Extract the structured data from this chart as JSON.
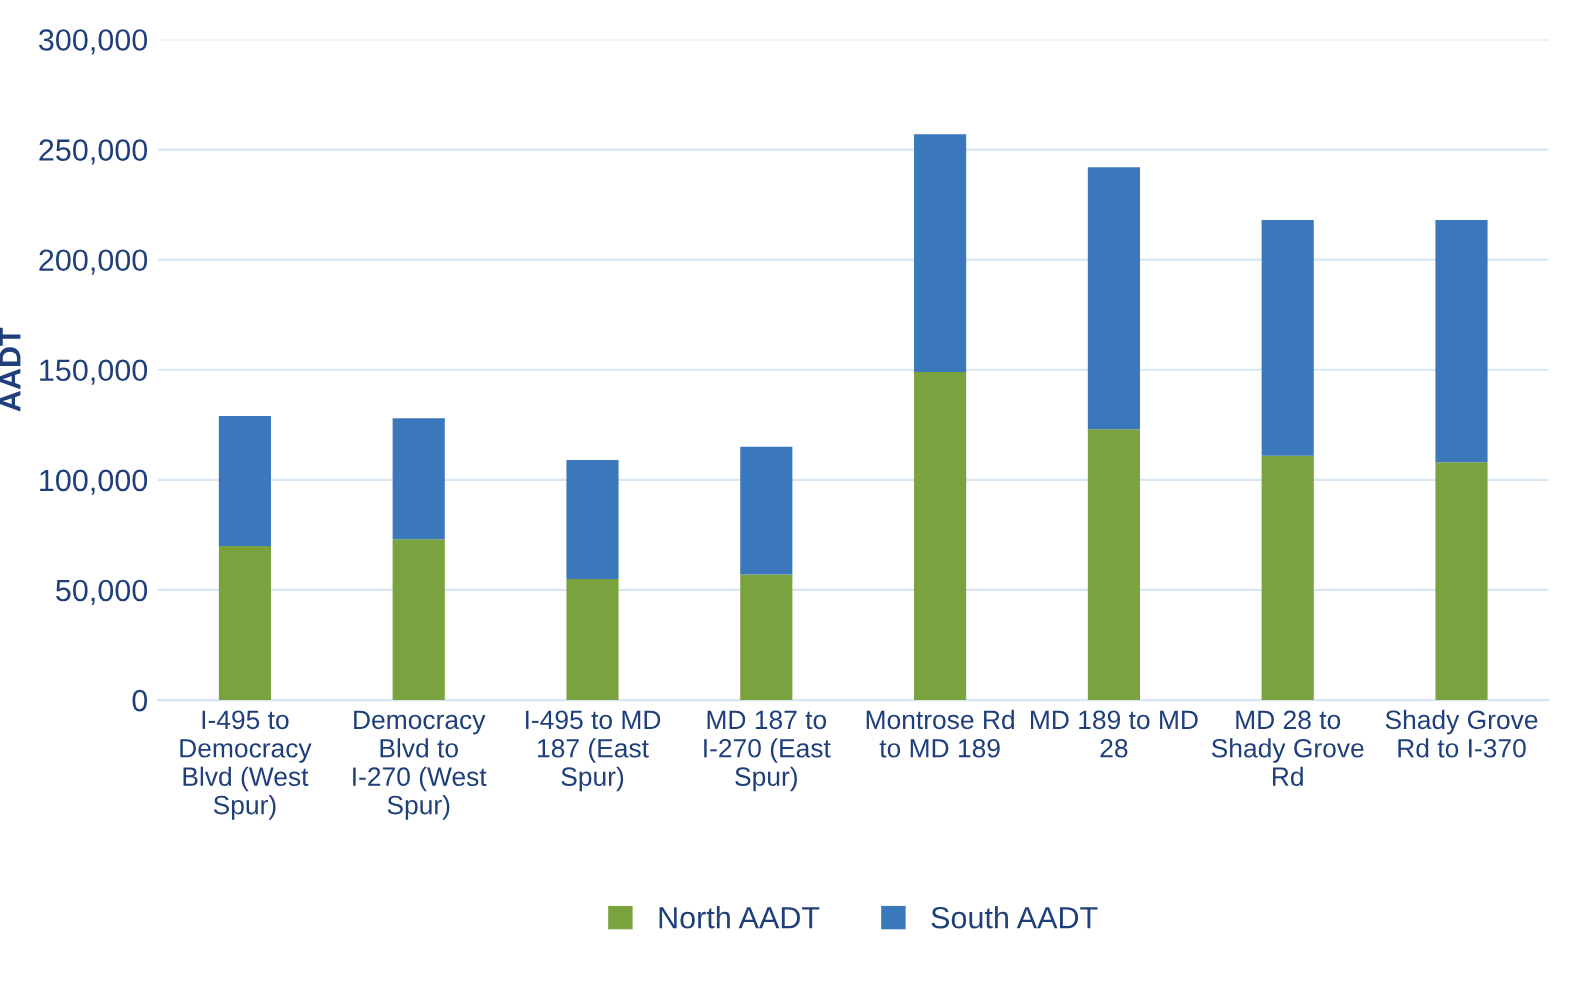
{
  "chart_data": {
    "type": "bar",
    "stacked": true,
    "ylabel": "AADT",
    "categories": [
      "I-495 to Democracy Blvd (West Spur)",
      "Democracy Blvd to I-270 (West Spur)",
      "I-495 to MD 187 (East Spur)",
      "MD 187 to I-270 (East Spur)",
      "Montrose Rd to MD 189",
      "MD 189 to MD 28",
      "MD 28 to Shady Grove Rd",
      "Shady Grove Rd to I-370"
    ],
    "series": [
      {
        "name": "North AADT",
        "color": "#7aa23f",
        "values": [
          70000,
          73000,
          55000,
          57000,
          149000,
          123000,
          111000,
          108000
        ]
      },
      {
        "name": "South AADT",
        "color": "#3b77bb",
        "values": [
          59000,
          55000,
          54000,
          58000,
          108000,
          119000,
          107000,
          110000
        ]
      }
    ],
    "ylim": [
      0,
      300000
    ],
    "yticks": [
      {
        "value": 0,
        "label": "0"
      },
      {
        "value": 50000,
        "label": "50,000"
      },
      {
        "value": 100000,
        "label": "100,000"
      },
      {
        "value": 150000,
        "label": "150,000"
      },
      {
        "value": 200000,
        "label": "200,000"
      },
      {
        "value": 250000,
        "label": "250,000"
      },
      {
        "value": 300000,
        "label": "300,000"
      }
    ],
    "grid": "y",
    "legend": "bottom"
  }
}
